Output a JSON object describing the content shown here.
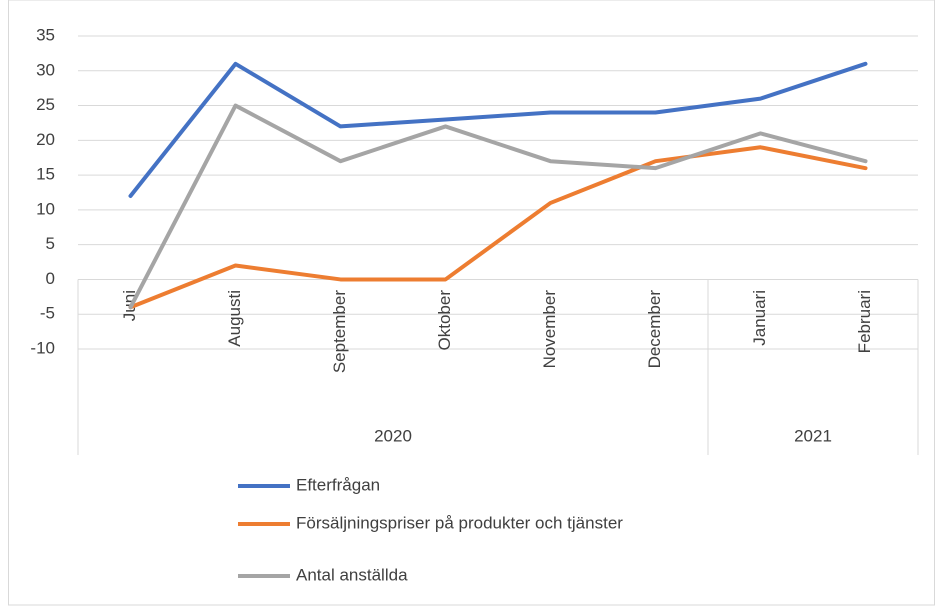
{
  "chart_data": {
    "type": "line",
    "groups": [
      {
        "label": "2020",
        "categories": [
          "Juni",
          "Augusti",
          "September",
          "Oktober",
          "November",
          "December"
        ]
      },
      {
        "label": "2021",
        "categories": [
          "Januari",
          "Februari"
        ]
      }
    ],
    "series": [
      {
        "name": "Efterfrågan",
        "color": "#4472c4",
        "values": [
          12,
          31,
          22,
          23,
          24,
          24,
          26,
          31
        ]
      },
      {
        "name": "Försäljningspriser på produkter och tjänster",
        "color": "#ed7d31",
        "values": [
          -4,
          2,
          0,
          0,
          11,
          17,
          19,
          16
        ]
      },
      {
        "name": "Antal anställda",
        "color": "#a5a5a5",
        "values": [
          -4,
          25,
          17,
          22,
          17,
          16,
          21,
          17
        ]
      }
    ],
    "ylim": [
      -10,
      35
    ],
    "yticks": [
      -10,
      -5,
      0,
      5,
      10,
      15,
      20,
      25,
      30,
      35
    ],
    "grid": true,
    "legend": "bottom"
  }
}
